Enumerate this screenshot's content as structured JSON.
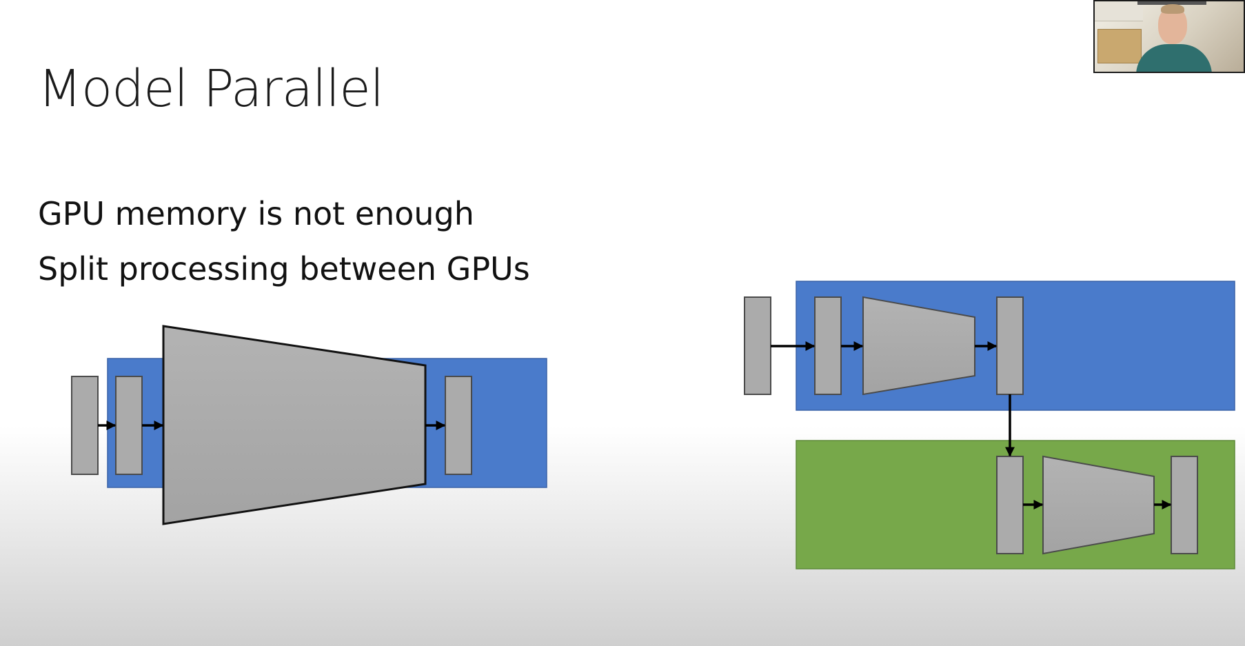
{
  "slide": {
    "title": "Model Parallel",
    "bullets": [
      "GPU memory is not enough",
      "Split processing between GPUs"
    ]
  },
  "colors": {
    "gpu_blue": "#4a7bcb",
    "gpu_green": "#77a84a",
    "layer_gray": "#ababab",
    "arrow": "#000000"
  },
  "webcam": {
    "label": "presenter webcam"
  }
}
